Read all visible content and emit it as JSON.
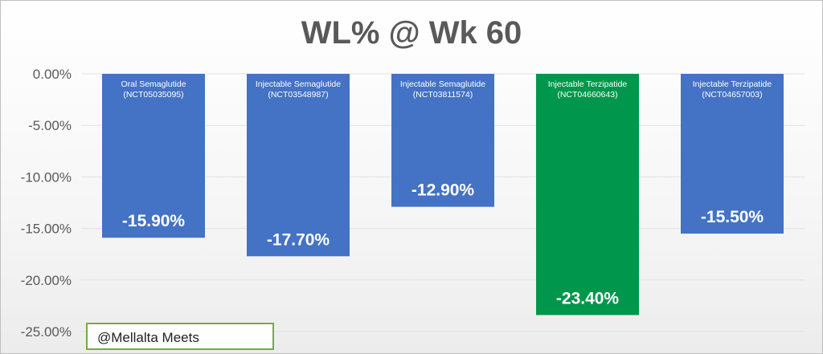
{
  "chart_data": {
    "type": "bar",
    "title": "WL% @ Wk 60",
    "categories": [
      {
        "name": "Oral Semaglutide",
        "trial": "(NCT05035095)"
      },
      {
        "name": "Injectable Semaglutide",
        "trial": "(NCT03548987)"
      },
      {
        "name": "Injectable Semaglutide",
        "trial": "(NCT03811574)"
      },
      {
        "name": "Injectable Terzipatide",
        "trial": "(NCT04660643)"
      },
      {
        "name": "Injectable Terzipatide",
        "trial": "(NCT04657003)"
      }
    ],
    "values": [
      -15.9,
      -17.7,
      -12.9,
      -23.4,
      -15.5
    ],
    "data_labels": [
      "-15.90%",
      "-17.70%",
      "-12.90%",
      "-23.40%",
      "-15.50%"
    ],
    "bar_colors": [
      "#4472c4",
      "#4472c4",
      "#4472c4",
      "#00964b",
      "#4472c4"
    ],
    "yticks": [
      "0.00%",
      "-5.00%",
      "-10.00%",
      "-15.00%",
      "-20.00%",
      "-25.00%"
    ],
    "ylim": [
      -25,
      0
    ],
    "xlabel": "",
    "ylabel": "",
    "grid": true,
    "legend": "none"
  },
  "watermark": "@Mellalta Meets"
}
